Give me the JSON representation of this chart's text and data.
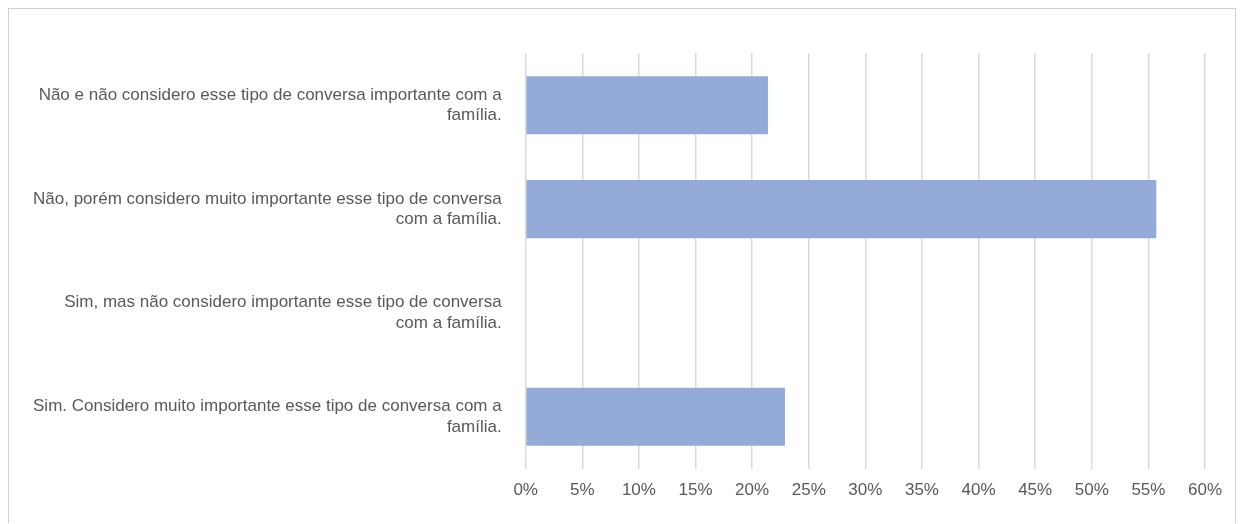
{
  "chart_data": {
    "type": "bar",
    "orientation": "horizontal",
    "categories": [
      "Não e não considero esse tipo de conversa importante com a família.",
      "Não, porém considero muito importante esse tipo de conversa com a família.",
      "Sim, mas não considero importante esse tipo de conversa com a família.",
      "Sim. Considero muito importante esse tipo de conversa com a família."
    ],
    "values": [
      21.4,
      55.7,
      0,
      22.9
    ],
    "color": "#94abd9",
    "xlim": [
      0,
      60
    ],
    "xticks": [
      {
        "value": 0,
        "label": "0%"
      },
      {
        "value": 5,
        "label": "5%"
      },
      {
        "value": 10,
        "label": "10%"
      },
      {
        "value": 15,
        "label": "15%"
      },
      {
        "value": 20,
        "label": "20%"
      },
      {
        "value": 25,
        "label": "25%"
      },
      {
        "value": 30,
        "label": "30%"
      },
      {
        "value": 35,
        "label": "35%"
      },
      {
        "value": 40,
        "label": "40%"
      },
      {
        "value": 45,
        "label": "45%"
      },
      {
        "value": 50,
        "label": "50%"
      },
      {
        "value": 55,
        "label": "55%"
      },
      {
        "value": 60,
        "label": "60%"
      }
    ],
    "grid": "x",
    "legend": false
  }
}
